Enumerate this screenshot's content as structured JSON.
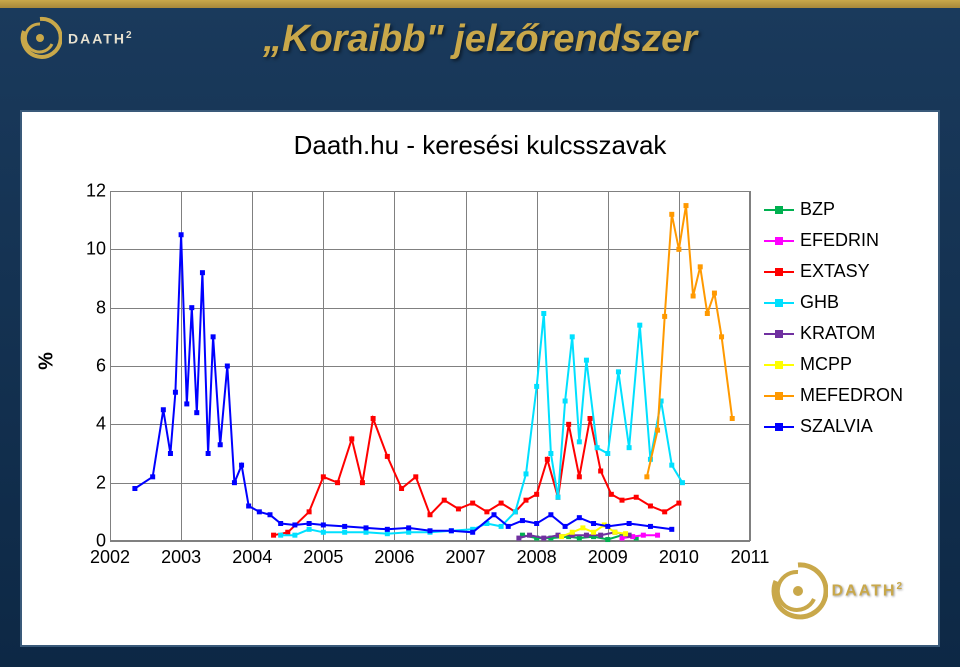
{
  "slide": {
    "title": "„Koraibb\" jelzőrendszer",
    "title_color": "#c9a84a",
    "title_fontsize": 38,
    "bg_gradient": [
      "#1a3a5c",
      "#0d2845"
    ],
    "accent_color": "#c9a84a"
  },
  "brand": {
    "name": "DAATH",
    "sup": "2",
    "swirl_color": "#c9a84a"
  },
  "chart": {
    "type": "line",
    "title": "Daath.hu - keresési kulcsszavak",
    "title_fontsize": 26,
    "background_color": "#ffffff",
    "grid_color": "#808080",
    "ylabel": "%",
    "ylim": [
      0,
      12
    ],
    "ytick_step": 2,
    "yticks": [
      0,
      2,
      4,
      6,
      8,
      10,
      12
    ],
    "xlim": [
      2002,
      2011
    ],
    "xticks": [
      2002,
      2003,
      2004,
      2005,
      2006,
      2007,
      2008,
      2009,
      2010,
      2011
    ],
    "line_width": 2,
    "marker_size": 5,
    "marker_shape": "square",
    "legend_position": "right",
    "series": [
      {
        "name": "BZP",
        "color": "#00b050",
        "points": [
          [
            2007.8,
            0.2
          ],
          [
            2008.0,
            0.1
          ],
          [
            2008.2,
            0.1
          ],
          [
            2008.45,
            0.15
          ],
          [
            2008.6,
            0.1
          ],
          [
            2008.8,
            0.15
          ],
          [
            2009.0,
            0.05
          ],
          [
            2009.2,
            0.2
          ],
          [
            2009.4,
            0.1
          ]
        ]
      },
      {
        "name": "EFEDRIN",
        "color": "#ff00ff",
        "points": [
          [
            2009.2,
            0.1
          ],
          [
            2009.35,
            0.15
          ],
          [
            2009.5,
            0.2
          ],
          [
            2009.7,
            0.2
          ]
        ]
      },
      {
        "name": "EXTASY",
        "color": "#ff0000",
        "points": [
          [
            2004.3,
            0.2
          ],
          [
            2004.5,
            0.3
          ],
          [
            2004.8,
            1.0
          ],
          [
            2005.0,
            2.2
          ],
          [
            2005.2,
            2.0
          ],
          [
            2005.4,
            3.5
          ],
          [
            2005.55,
            2.0
          ],
          [
            2005.7,
            4.2
          ],
          [
            2005.9,
            2.9
          ],
          [
            2006.1,
            1.8
          ],
          [
            2006.3,
            2.2
          ],
          [
            2006.5,
            0.9
          ],
          [
            2006.7,
            1.4
          ],
          [
            2006.9,
            1.1
          ],
          [
            2007.1,
            1.3
          ],
          [
            2007.3,
            1.0
          ],
          [
            2007.5,
            1.3
          ],
          [
            2007.7,
            1.0
          ],
          [
            2007.85,
            1.4
          ],
          [
            2008.0,
            1.6
          ],
          [
            2008.15,
            2.8
          ],
          [
            2008.3,
            1.5
          ],
          [
            2008.45,
            4.0
          ],
          [
            2008.6,
            2.2
          ],
          [
            2008.75,
            4.2
          ],
          [
            2008.9,
            2.4
          ],
          [
            2009.05,
            1.6
          ],
          [
            2009.2,
            1.4
          ],
          [
            2009.4,
            1.5
          ],
          [
            2009.6,
            1.2
          ],
          [
            2009.8,
            1.0
          ],
          [
            2010.0,
            1.3
          ]
        ]
      },
      {
        "name": "GHB",
        "color": "#00e0ff",
        "points": [
          [
            2004.4,
            0.2
          ],
          [
            2004.6,
            0.2
          ],
          [
            2004.8,
            0.4
          ],
          [
            2005.0,
            0.3
          ],
          [
            2005.3,
            0.3
          ],
          [
            2005.6,
            0.3
          ],
          [
            2005.9,
            0.25
          ],
          [
            2006.2,
            0.3
          ],
          [
            2006.5,
            0.3
          ],
          [
            2006.8,
            0.35
          ],
          [
            2007.1,
            0.4
          ],
          [
            2007.3,
            0.6
          ],
          [
            2007.5,
            0.5
          ],
          [
            2007.7,
            1.0
          ],
          [
            2007.85,
            2.3
          ],
          [
            2008.0,
            5.3
          ],
          [
            2008.1,
            7.8
          ],
          [
            2008.2,
            3.0
          ],
          [
            2008.3,
            1.5
          ],
          [
            2008.4,
            4.8
          ],
          [
            2008.5,
            7.0
          ],
          [
            2008.6,
            3.4
          ],
          [
            2008.7,
            6.2
          ],
          [
            2008.85,
            3.2
          ],
          [
            2009.0,
            3.0
          ],
          [
            2009.15,
            5.8
          ],
          [
            2009.3,
            3.2
          ],
          [
            2009.45,
            7.4
          ],
          [
            2009.6,
            2.8
          ],
          [
            2009.75,
            4.8
          ],
          [
            2009.9,
            2.6
          ],
          [
            2010.05,
            2.0
          ]
        ]
      },
      {
        "name": "KRATOM",
        "color": "#7030a0",
        "points": [
          [
            2007.75,
            0.1
          ],
          [
            2007.9,
            0.2
          ],
          [
            2008.1,
            0.1
          ],
          [
            2008.3,
            0.2
          ],
          [
            2008.5,
            0.2
          ],
          [
            2008.7,
            0.2
          ],
          [
            2008.9,
            0.2
          ],
          [
            2009.1,
            0.3
          ],
          [
            2009.3,
            0.2
          ]
        ]
      },
      {
        "name": "MCPP",
        "color": "#ffff00",
        "points": [
          [
            2008.35,
            0.15
          ],
          [
            2008.5,
            0.3
          ],
          [
            2008.65,
            0.45
          ],
          [
            2008.8,
            0.3
          ],
          [
            2008.95,
            0.55
          ],
          [
            2009.1,
            0.3
          ],
          [
            2009.25,
            0.25
          ]
        ]
      },
      {
        "name": "MEFEDRON",
        "color": "#ff9900",
        "points": [
          [
            2009.55,
            2.2
          ],
          [
            2009.7,
            3.8
          ],
          [
            2009.8,
            7.7
          ],
          [
            2009.9,
            11.2
          ],
          [
            2010.0,
            10.0
          ],
          [
            2010.1,
            11.5
          ],
          [
            2010.2,
            8.4
          ],
          [
            2010.3,
            9.4
          ],
          [
            2010.4,
            7.8
          ],
          [
            2010.5,
            8.5
          ],
          [
            2010.6,
            7.0
          ],
          [
            2010.75,
            4.2
          ]
        ]
      },
      {
        "name": "SZALVIA",
        "color": "#0000ff",
        "points": [
          [
            2002.35,
            1.8
          ],
          [
            2002.6,
            2.2
          ],
          [
            2002.75,
            4.5
          ],
          [
            2002.85,
            3.0
          ],
          [
            2002.92,
            5.1
          ],
          [
            2003.0,
            10.5
          ],
          [
            2003.08,
            4.7
          ],
          [
            2003.15,
            8.0
          ],
          [
            2003.22,
            4.4
          ],
          [
            2003.3,
            9.2
          ],
          [
            2003.38,
            3.0
          ],
          [
            2003.45,
            7.0
          ],
          [
            2003.55,
            3.3
          ],
          [
            2003.65,
            6.0
          ],
          [
            2003.75,
            2.0
          ],
          [
            2003.85,
            2.6
          ],
          [
            2003.95,
            1.2
          ],
          [
            2004.1,
            1.0
          ],
          [
            2004.25,
            0.9
          ],
          [
            2004.4,
            0.6
          ],
          [
            2004.6,
            0.55
          ],
          [
            2004.8,
            0.6
          ],
          [
            2005.0,
            0.55
          ],
          [
            2005.3,
            0.5
          ],
          [
            2005.6,
            0.45
          ],
          [
            2005.9,
            0.4
          ],
          [
            2006.2,
            0.45
          ],
          [
            2006.5,
            0.35
          ],
          [
            2006.8,
            0.35
          ],
          [
            2007.1,
            0.3
          ],
          [
            2007.4,
            0.9
          ],
          [
            2007.6,
            0.5
          ],
          [
            2007.8,
            0.7
          ],
          [
            2008.0,
            0.6
          ],
          [
            2008.2,
            0.9
          ],
          [
            2008.4,
            0.5
          ],
          [
            2008.6,
            0.8
          ],
          [
            2008.8,
            0.6
          ],
          [
            2009.0,
            0.5
          ],
          [
            2009.3,
            0.6
          ],
          [
            2009.6,
            0.5
          ],
          [
            2009.9,
            0.4
          ]
        ]
      }
    ]
  }
}
